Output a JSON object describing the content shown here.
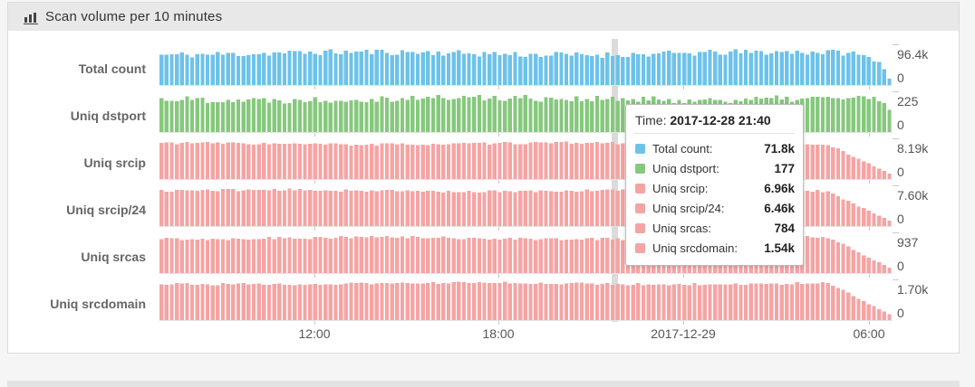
{
  "panel": {
    "title": "Scan volume per 10 minutes",
    "title_icon": "bar-chart-icon"
  },
  "chart_data": {
    "type": "bar",
    "title": "Scan volume per 10 minutes",
    "interval": "10 minutes",
    "x_axis": {
      "tick_labels": [
        "12:00",
        "18:00",
        "2017-12-29",
        "06:00"
      ],
      "range_note": "~24 hours of 10-minute buckets from 2017-12-28 ~07:00 to 2017-12-29 ~06:50"
    },
    "rows": [
      {
        "label": "Total count",
        "color": "#6DC2EA",
        "axis_max": "96.4k",
        "axis_min": "0",
        "value_at_cursor": "71.8k"
      },
      {
        "label": "Uniq dstport",
        "color": "#86C87D",
        "axis_max": "225",
        "axis_min": "0",
        "value_at_cursor": "177"
      },
      {
        "label": "Uniq srcip",
        "color": "#F5A4A4",
        "axis_max": "8.19k",
        "axis_min": "0",
        "value_at_cursor": "6.96k"
      },
      {
        "label": "Uniq srcip/24",
        "color": "#F5A4A4",
        "axis_max": "7.60k",
        "axis_min": "0",
        "value_at_cursor": "6.46k"
      },
      {
        "label": "Uniq srcas",
        "color": "#F5A4A4",
        "axis_max": "937",
        "axis_min": "0",
        "value_at_cursor": "784"
      },
      {
        "label": "Uniq srcdomain",
        "color": "#F5A4A4",
        "axis_max": "1.70k",
        "axis_min": "0",
        "value_at_cursor": "1.54k"
      }
    ],
    "render_hints": {
      "bars_per_row": 143,
      "series": [
        {
          "seed": 11,
          "base": 0.76,
          "noise": 0.075,
          "wave": 0.035,
          "end": "cliff"
        },
        {
          "seed": 22,
          "base": 0.8,
          "noise": 0.085,
          "wave": 0.03,
          "end": "soft"
        },
        {
          "seed": 33,
          "base": 0.85,
          "noise": 0.03,
          "wave": 0.02,
          "end": "taper"
        },
        {
          "seed": 44,
          "base": 0.85,
          "noise": 0.03,
          "wave": 0.02,
          "end": "taper"
        },
        {
          "seed": 55,
          "base": 0.84,
          "noise": 0.035,
          "wave": 0.022,
          "end": "taper"
        },
        {
          "seed": 66,
          "base": 0.88,
          "noise": 0.028,
          "wave": 0.018,
          "end": "taper"
        }
      ]
    }
  },
  "tooltip": {
    "time_label": "Time:",
    "time_value": "2017-12-28 21:40",
    "items": [
      {
        "label": "Total count:",
        "value": "71.8k",
        "color": "#6DC2EA"
      },
      {
        "label": "Uniq dstport:",
        "value": "177",
        "color": "#86C87D"
      },
      {
        "label": "Uniq srcip:",
        "value": "6.96k",
        "color": "#F5A4A4"
      },
      {
        "label": "Uniq srcip/24:",
        "value": "6.46k",
        "color": "#F5A4A4"
      },
      {
        "label": "Uniq srcas:",
        "value": "784",
        "color": "#F5A4A4"
      },
      {
        "label": "Uniq srcdomain:",
        "value": "1.54k",
        "color": "#F5A4A4"
      }
    ]
  }
}
